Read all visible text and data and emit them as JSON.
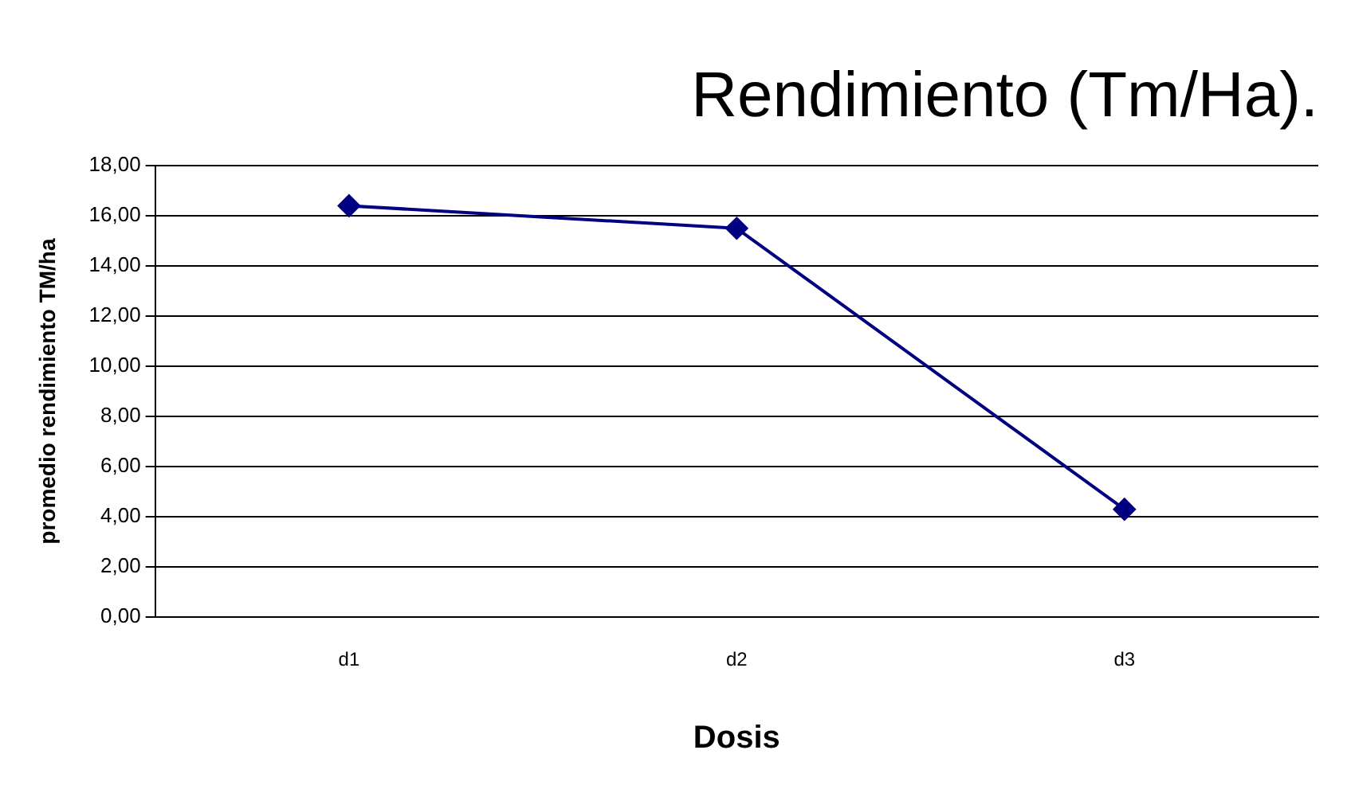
{
  "chart_data": {
    "type": "line",
    "title": "Rendimiento (Tm/Ha).",
    "xlabel": "Dosis",
    "ylabel": "promedio rendimiento TM/ha",
    "categories": [
      "d1",
      "d2",
      "d3"
    ],
    "series": [
      {
        "color": "#000080",
        "values": [
          16.4,
          15.5,
          4.3
        ]
      }
    ],
    "ylim": [
      0,
      18
    ],
    "yticks": [
      {
        "value": 0,
        "label": "0,00"
      },
      {
        "value": 2,
        "label": "2,00"
      },
      {
        "value": 4,
        "label": "4,00"
      },
      {
        "value": 6,
        "label": "6,00"
      },
      {
        "value": 8,
        "label": "8,00"
      },
      {
        "value": 10,
        "label": "10,00"
      },
      {
        "value": 12,
        "label": "12,00"
      },
      {
        "value": 14,
        "label": "14,00"
      },
      {
        "value": 16,
        "label": "16,00"
      },
      {
        "value": 18,
        "label": "18,00"
      }
    ],
    "grid": "y",
    "marker": "diamond",
    "line_style": "solid",
    "legend": false
  }
}
